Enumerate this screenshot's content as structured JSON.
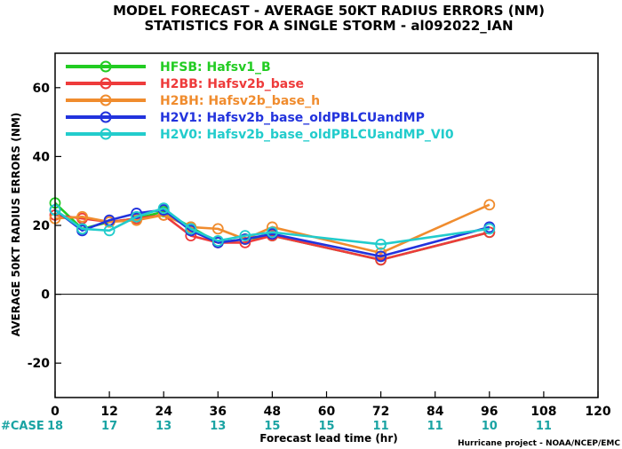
{
  "title_line1": "MODEL FORECAST - AVERAGE 50KT RADIUS ERRORS (NM)",
  "title_line2": "STATISTICS FOR A SINGLE STORM - al092022_IAN",
  "credit": "Hurricane project - NOAA/NCEP/EMC",
  "case_label": "#CASE",
  "case_counts": [
    {
      "x": 0,
      "n": "18"
    },
    {
      "x": 12,
      "n": "17"
    },
    {
      "x": 24,
      "n": "13"
    },
    {
      "x": 36,
      "n": "13"
    },
    {
      "x": 48,
      "n": "15"
    },
    {
      "x": 60,
      "n": "15"
    },
    {
      "x": 72,
      "n": "11"
    },
    {
      "x": 84,
      "n": "11"
    },
    {
      "x": 96,
      "n": "10"
    },
    {
      "x": 108,
      "n": "11"
    }
  ],
  "chart_data": {
    "type": "line",
    "title": "MODEL FORECAST - AVERAGE 50KT RADIUS ERRORS (NM)",
    "subtitle": "STATISTICS FOR A SINGLE STORM - al092022_IAN",
    "xlabel": "Forecast lead time (hr)",
    "ylabel": "AVERAGE 50KT RADIUS ERRORS (NM)",
    "xlim": [
      0,
      120
    ],
    "ylim": [
      -30,
      70
    ],
    "xticks": [
      0,
      12,
      24,
      36,
      48,
      60,
      72,
      84,
      96,
      108,
      120
    ],
    "yticks": [
      -20,
      0,
      20,
      40,
      60
    ],
    "grid": false,
    "zero_line": true,
    "legend_position": "top-left",
    "series": [
      {
        "name": "HFSB: Hafsv1_B",
        "color": "#22cc22",
        "x": [
          0,
          6,
          12,
          18,
          24,
          30,
          36,
          42,
          48,
          72,
          96
        ],
        "y": [
          26.5,
          19,
          21,
          22,
          24,
          19.5,
          15,
          16,
          17,
          10,
          18
        ]
      },
      {
        "name": "H2BB: Hafsv2b_base",
        "color": "#ee3b3b",
        "x": [
          0,
          6,
          12,
          18,
          24,
          30,
          36,
          42,
          48,
          72,
          96
        ],
        "y": [
          23,
          22,
          21,
          22,
          23,
          17,
          15,
          15,
          17,
          10,
          18
        ]
      },
      {
        "name": "H2BH: Hafsv2b_base_h",
        "color": "#f08c2e",
        "x": [
          0,
          6,
          12,
          18,
          24,
          30,
          36,
          42,
          48,
          72,
          96
        ],
        "y": [
          22,
          22.5,
          21,
          21.5,
          23,
          19.5,
          19,
          16,
          19.5,
          12,
          26
        ]
      },
      {
        "name": "H2V1: Hafsv2b_base_oldPBLCUandMP",
        "color": "#2233dd",
        "x": [
          0,
          6,
          12,
          18,
          24,
          30,
          36,
          42,
          48,
          72,
          96
        ],
        "y": [
          24.5,
          18.5,
          21.5,
          23.5,
          24.5,
          18.5,
          15,
          16,
          17.5,
          11,
          19.5
        ]
      },
      {
        "name": "H2V0: Hafsv2b_base_oldPBLCUandMP_VI0",
        "color": "#22cccc",
        "x": [
          0,
          6,
          12,
          18,
          24,
          30,
          36,
          42,
          48,
          72,
          96
        ],
        "y": [
          24.5,
          19,
          18.5,
          22.5,
          25,
          19,
          15.5,
          17,
          18,
          14.5,
          19
        ]
      }
    ]
  }
}
